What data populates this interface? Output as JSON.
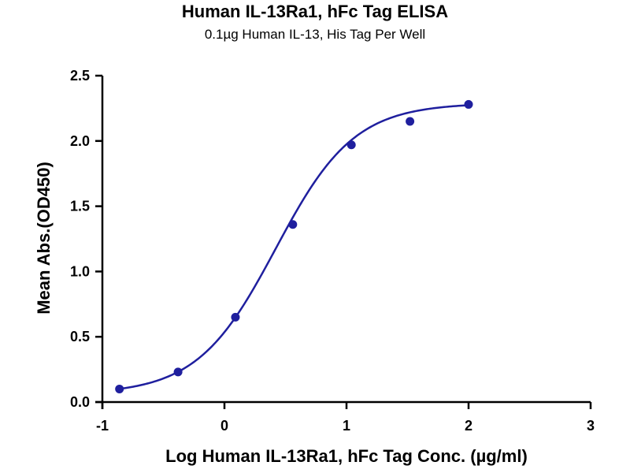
{
  "chart_data": {
    "type": "scatter",
    "title": "Human IL-13Ra1, hFc Tag ELISA",
    "subtitle": "0.1µg Human IL-13, His Tag Per Well",
    "xlabel": "Log Human IL-13Ra1, hFc Tag Conc. (µg/ml)",
    "ylabel": "Mean Abs.(OD450)",
    "xlim": [
      -1,
      3
    ],
    "ylim": [
      0,
      2.5
    ],
    "xticks": [
      -1,
      0,
      1,
      2,
      3
    ],
    "xtick_labels": [
      "-1",
      "0",
      "1",
      "2",
      "3"
    ],
    "yticks": [
      0,
      0.5,
      1.0,
      1.5,
      2.0,
      2.5
    ],
    "ytick_labels": [
      "0.0",
      "0.5",
      "1.0",
      "1.5",
      "2.0",
      "2.5"
    ],
    "points": [
      {
        "x": -0.86,
        "y": 0.1
      },
      {
        "x": -0.38,
        "y": 0.23
      },
      {
        "x": 0.09,
        "y": 0.65
      },
      {
        "x": 0.56,
        "y": 1.36
      },
      {
        "x": 1.04,
        "y": 1.97
      },
      {
        "x": 1.52,
        "y": 2.15
      },
      {
        "x": 2.0,
        "y": 2.28
      }
    ],
    "fit_curve": {
      "type": "4PL",
      "bottom": 0.06,
      "top": 2.29,
      "log_ec50": 0.42,
      "hill_slope": 1.35,
      "x_range": [
        -0.86,
        2.0
      ]
    },
    "color": "#1f1f9e",
    "grid": false,
    "legend": "none"
  }
}
